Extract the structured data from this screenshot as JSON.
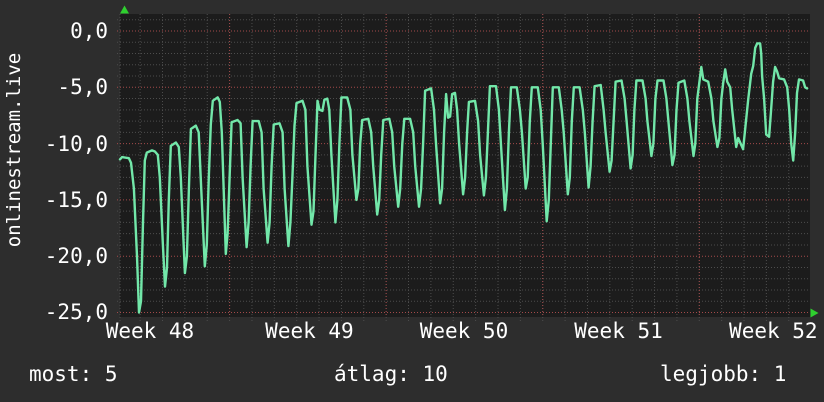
{
  "left_title": "onlinestream.live",
  "stats": [
    {
      "label": "most",
      "value": "5",
      "text": "most: 5"
    },
    {
      "label": "átlag",
      "value": "10",
      "text": "átlag: 10"
    },
    {
      "label": "legjobb",
      "value": "1",
      "text": "legjobb: 1"
    }
  ],
  "colors": {
    "background": "#2d2d2d",
    "plot_background": "#1c1c1c",
    "grid_minor": "#4d4d4d",
    "grid_major": "#a34a4a",
    "series_line": "#72e7a9",
    "arrow": "#2fcf2f",
    "text": "#ffffff"
  },
  "chart_data": {
    "type": "line",
    "title": "",
    "ylabel": "onlinestream.live",
    "xlabel": "",
    "grid": true,
    "legend_position": "none",
    "x_axis": {
      "unit": "days",
      "range_days": [
        0,
        30.85
      ],
      "minor_step_days": 1,
      "minor_anchor_day": 0.9,
      "week_boundaries_days": [
        4.9,
        11.9,
        18.9,
        25.9
      ],
      "tick_labels": [
        {
          "text": "Week 48",
          "day": 1.34
        },
        {
          "text": "Week 49",
          "day": 8.47
        },
        {
          "text": "Week 50",
          "day": 15.38
        },
        {
          "text": "Week 51",
          "day": 22.29
        },
        {
          "text": "Week 52",
          "day": 29.21
        }
      ]
    },
    "y_axis": {
      "range": [
        -25.4,
        1.51
      ],
      "minor_step": 1,
      "major_ticks": [
        {
          "value": 0,
          "label": "0,0"
        },
        {
          "value": -5,
          "label": "-5,0"
        },
        {
          "value": -10,
          "label": "-10,0"
        },
        {
          "value": -15,
          "label": "-15,0"
        },
        {
          "value": -20,
          "label": "-20,0"
        },
        {
          "value": -25,
          "label": "-25,0"
        }
      ]
    },
    "series": [
      {
        "name": "onlinestream.live",
        "color": "#72e7a9",
        "points": [
          [
            0,
            -11.4
          ],
          [
            0.09,
            -11.2
          ],
          [
            0.4,
            -11.3
          ],
          [
            0.49,
            -11.7
          ],
          [
            0.62,
            -14
          ],
          [
            0.76,
            -20
          ],
          [
            0.85,
            -25
          ],
          [
            0.94,
            -24
          ],
          [
            1.03,
            -17
          ],
          [
            1.11,
            -11.5
          ],
          [
            1.2,
            -10.8
          ],
          [
            1.43,
            -10.6
          ],
          [
            1.56,
            -10.7
          ],
          [
            1.69,
            -11
          ],
          [
            1.78,
            -13
          ],
          [
            1.92,
            -19
          ],
          [
            2.01,
            -22.7
          ],
          [
            2.1,
            -21
          ],
          [
            2.18,
            -15
          ],
          [
            2.27,
            -10.2
          ],
          [
            2.5,
            -9.9
          ],
          [
            2.63,
            -10.3
          ],
          [
            2.72,
            -13
          ],
          [
            2.9,
            -21.5
          ],
          [
            2.99,
            -20
          ],
          [
            3.08,
            -14
          ],
          [
            3.17,
            -8.7
          ],
          [
            3.39,
            -8.4
          ],
          [
            3.52,
            -9
          ],
          [
            3.61,
            -13
          ],
          [
            3.79,
            -20.9
          ],
          [
            3.88,
            -19
          ],
          [
            3.97,
            -13
          ],
          [
            4.06,
            -8.3
          ],
          [
            4.15,
            -6.2
          ],
          [
            4.37,
            -5.9
          ],
          [
            4.46,
            -6.3
          ],
          [
            4.55,
            -9
          ],
          [
            4.73,
            -19.8
          ],
          [
            4.81,
            -18
          ],
          [
            4.9,
            -13
          ],
          [
            4.99,
            -8.1
          ],
          [
            5.26,
            -7.9
          ],
          [
            5.39,
            -8.2
          ],
          [
            5.48,
            -13
          ],
          [
            5.66,
            -19.2
          ],
          [
            5.75,
            -17
          ],
          [
            5.84,
            -12
          ],
          [
            5.93,
            -8
          ],
          [
            6.2,
            -8
          ],
          [
            6.33,
            -9
          ],
          [
            6.42,
            -14
          ],
          [
            6.6,
            -18.8
          ],
          [
            6.69,
            -17
          ],
          [
            6.78,
            -12
          ],
          [
            6.87,
            -8.3
          ],
          [
            7.13,
            -8.2
          ],
          [
            7.27,
            -9
          ],
          [
            7.36,
            -14
          ],
          [
            7.53,
            -19.1
          ],
          [
            7.62,
            -17
          ],
          [
            7.71,
            -13
          ],
          [
            7.8,
            -8.4
          ],
          [
            7.89,
            -6.4
          ],
          [
            8.16,
            -6.2
          ],
          [
            8.29,
            -7
          ],
          [
            8.38,
            -12
          ],
          [
            8.56,
            -17.2
          ],
          [
            8.65,
            -16
          ],
          [
            8.74,
            -11
          ],
          [
            8.83,
            -6.2
          ],
          [
            8.92,
            -7
          ],
          [
            9.05,
            -7.1
          ],
          [
            9.14,
            -6.1
          ],
          [
            9.27,
            -6
          ],
          [
            9.36,
            -7
          ],
          [
            9.45,
            -11
          ],
          [
            9.63,
            -17
          ],
          [
            9.72,
            -15
          ],
          [
            9.81,
            -10
          ],
          [
            9.9,
            -5.9
          ],
          [
            10.16,
            -5.9
          ],
          [
            10.3,
            -7
          ],
          [
            10.39,
            -11
          ],
          [
            10.57,
            -15
          ],
          [
            10.66,
            -14
          ],
          [
            10.74,
            -10
          ],
          [
            10.83,
            -7.9
          ],
          [
            11.1,
            -7.8
          ],
          [
            11.23,
            -9
          ],
          [
            11.32,
            -12
          ],
          [
            11.5,
            -16.3
          ],
          [
            11.59,
            -15
          ],
          [
            11.68,
            -11
          ],
          [
            11.77,
            -7.9
          ],
          [
            12.04,
            -7.8
          ],
          [
            12.17,
            -9
          ],
          [
            12.26,
            -12
          ],
          [
            12.44,
            -15.6
          ],
          [
            12.53,
            -14
          ],
          [
            12.62,
            -10
          ],
          [
            12.71,
            -7.8
          ],
          [
            12.97,
            -7.8
          ],
          [
            13.11,
            -9
          ],
          [
            13.2,
            -12
          ],
          [
            13.37,
            -15.6
          ],
          [
            13.46,
            -14
          ],
          [
            13.55,
            -10
          ],
          [
            13.64,
            -5.3
          ],
          [
            13.91,
            -5.1
          ],
          [
            14.04,
            -7
          ],
          [
            14.13,
            -10
          ],
          [
            14.31,
            -15.3
          ],
          [
            14.4,
            -14
          ],
          [
            14.49,
            -9
          ],
          [
            14.58,
            -5.6
          ],
          [
            14.67,
            -7.7
          ],
          [
            14.76,
            -7.6
          ],
          [
            14.85,
            -5.6
          ],
          [
            14.98,
            -5.5
          ],
          [
            15.07,
            -7
          ],
          [
            15.16,
            -10
          ],
          [
            15.34,
            -14.5
          ],
          [
            15.43,
            -13
          ],
          [
            15.52,
            -9
          ],
          [
            15.6,
            -6.3
          ],
          [
            15.87,
            -6.2
          ],
          [
            16.01,
            -8
          ],
          [
            16.1,
            -11
          ],
          [
            16.27,
            -14.6
          ],
          [
            16.36,
            -13
          ],
          [
            16.45,
            -9
          ],
          [
            16.54,
            -4.9
          ],
          [
            16.81,
            -4.9
          ],
          [
            16.94,
            -7
          ],
          [
            17.03,
            -10
          ],
          [
            17.21,
            -15.9
          ],
          [
            17.3,
            -14
          ],
          [
            17.39,
            -9
          ],
          [
            17.48,
            -5
          ],
          [
            17.74,
            -5
          ],
          [
            17.88,
            -7
          ],
          [
            17.97,
            -9
          ],
          [
            18.14,
            -14
          ],
          [
            18.23,
            -13
          ],
          [
            18.32,
            -8
          ],
          [
            18.41,
            -5
          ],
          [
            18.68,
            -5
          ],
          [
            18.81,
            -7
          ],
          [
            18.9,
            -10
          ],
          [
            19.08,
            -16.9
          ],
          [
            19.17,
            -15
          ],
          [
            19.26,
            -10
          ],
          [
            19.35,
            -5
          ],
          [
            19.62,
            -5
          ],
          [
            19.75,
            -7
          ],
          [
            19.84,
            -9
          ],
          [
            20.02,
            -14.5
          ],
          [
            20.11,
            -13
          ],
          [
            20.2,
            -8
          ],
          [
            20.29,
            -5
          ],
          [
            20.55,
            -5
          ],
          [
            20.69,
            -7
          ],
          [
            20.78,
            -9
          ],
          [
            20.95,
            -13.9
          ],
          [
            21.04,
            -12
          ],
          [
            21.13,
            -8
          ],
          [
            21.22,
            -4.9
          ],
          [
            21.49,
            -4.8
          ],
          [
            21.62,
            -7
          ],
          [
            21.71,
            -9
          ],
          [
            21.89,
            -12.5
          ],
          [
            21.98,
            -11.5
          ],
          [
            22.07,
            -8
          ],
          [
            22.16,
            -4.5
          ],
          [
            22.42,
            -4.4
          ],
          [
            22.56,
            -6
          ],
          [
            22.65,
            -8
          ],
          [
            22.83,
            -12.2
          ],
          [
            22.92,
            -11
          ],
          [
            23,
            -7
          ],
          [
            23.09,
            -4.4
          ],
          [
            23.36,
            -4.4
          ],
          [
            23.5,
            -6
          ],
          [
            23.58,
            -8
          ],
          [
            23.76,
            -11.1
          ],
          [
            23.85,
            -10
          ],
          [
            23.94,
            -6
          ],
          [
            24.03,
            -4.4
          ],
          [
            24.3,
            -4.4
          ],
          [
            24.43,
            -6
          ],
          [
            24.52,
            -8
          ],
          [
            24.7,
            -11.9
          ],
          [
            24.79,
            -11
          ],
          [
            24.88,
            -7
          ],
          [
            24.97,
            -4.6
          ],
          [
            25.23,
            -4.4
          ],
          [
            25.37,
            -6
          ],
          [
            25.46,
            -8
          ],
          [
            25.64,
            -11.1
          ],
          [
            25.72,
            -10
          ],
          [
            25.81,
            -6
          ],
          [
            25.9,
            -4.6
          ],
          [
            25.99,
            -3.2
          ],
          [
            26.08,
            -4.3
          ],
          [
            26.3,
            -4.5
          ],
          [
            26.44,
            -6
          ],
          [
            26.53,
            -8
          ],
          [
            26.71,
            -10.3
          ],
          [
            26.8,
            -9.5
          ],
          [
            26.89,
            -6
          ],
          [
            26.97,
            -4.6
          ],
          [
            27.06,
            -3.4
          ],
          [
            27.15,
            -4.5
          ],
          [
            27.28,
            -5
          ],
          [
            27.37,
            -7
          ],
          [
            27.55,
            -10.3
          ],
          [
            27.64,
            -9.5
          ],
          [
            27.86,
            -10.5
          ],
          [
            28.09,
            -6
          ],
          [
            28.22,
            -3.8
          ],
          [
            28.31,
            -3.1
          ],
          [
            28.4,
            -1.5
          ],
          [
            28.49,
            -1.1
          ],
          [
            28.62,
            -1.1
          ],
          [
            28.67,
            -2
          ],
          [
            28.71,
            -4
          ],
          [
            28.8,
            -6
          ],
          [
            28.89,
            -9.2
          ],
          [
            29.02,
            -9.4
          ],
          [
            29.11,
            -7
          ],
          [
            29.2,
            -4.5
          ],
          [
            29.29,
            -3.2
          ],
          [
            29.38,
            -3.6
          ],
          [
            29.47,
            -4.2
          ],
          [
            29.69,
            -4.3
          ],
          [
            29.83,
            -5
          ],
          [
            29.92,
            -7
          ],
          [
            30.01,
            -10
          ],
          [
            30.1,
            -11.5
          ],
          [
            30.19,
            -9
          ],
          [
            30.27,
            -5.5
          ],
          [
            30.36,
            -4.3
          ],
          [
            30.54,
            -4.4
          ],
          [
            30.63,
            -5
          ],
          [
            30.72,
            -5.1
          ]
        ]
      }
    ]
  }
}
